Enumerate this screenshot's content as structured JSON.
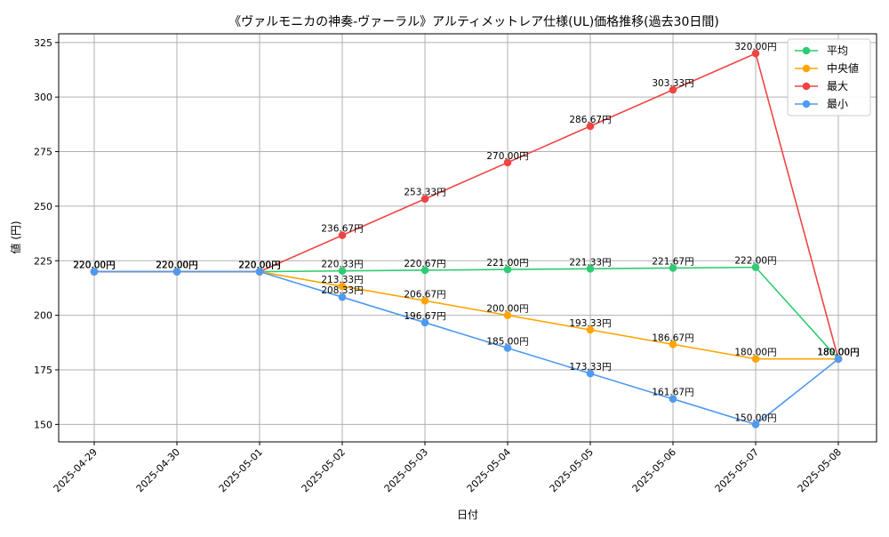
{
  "chart_data": {
    "type": "line",
    "title": "《ヴァルモニカの神奏-ヴァーラル》アルティメットレア仕様(UL)価格推移(過去30日間)",
    "xlabel": "日付",
    "ylabel": "値 (円)",
    "categories": [
      "2025-04-29",
      "2025-04-30",
      "2025-05-01",
      "2025-05-02",
      "2025-05-03",
      "2025-05-04",
      "2025-05-05",
      "2025-05-06",
      "2025-05-07",
      "2025-05-08"
    ],
    "ylim": [
      142,
      329
    ],
    "yticks": [
      "150",
      "175",
      "200",
      "225",
      "250",
      "275",
      "300",
      "325"
    ],
    "grid": true,
    "legend_position": "top-right",
    "label_suffix": "円",
    "series": [
      {
        "name": "平均",
        "color": "#2ecc71",
        "values": [
          220.0,
          220.0,
          220.0,
          220.33,
          220.67,
          221.0,
          221.33,
          221.67,
          222.0,
          180.0
        ]
      },
      {
        "name": "中央値",
        "color": "#ffa500",
        "values": [
          220.0,
          220.0,
          220.0,
          213.33,
          206.67,
          200.0,
          193.33,
          186.67,
          180.0,
          180.0
        ]
      },
      {
        "name": "最大",
        "color": "#ef4444",
        "values": [
          220.0,
          220.0,
          220.0,
          236.67,
          253.33,
          270.0,
          286.67,
          303.33,
          320.0,
          180.0
        ]
      },
      {
        "name": "最小",
        "color": "#4e9af1",
        "values": [
          220.0,
          220.0,
          220.0,
          208.33,
          196.67,
          185.0,
          173.33,
          161.67,
          150.0,
          180.0
        ]
      }
    ]
  }
}
